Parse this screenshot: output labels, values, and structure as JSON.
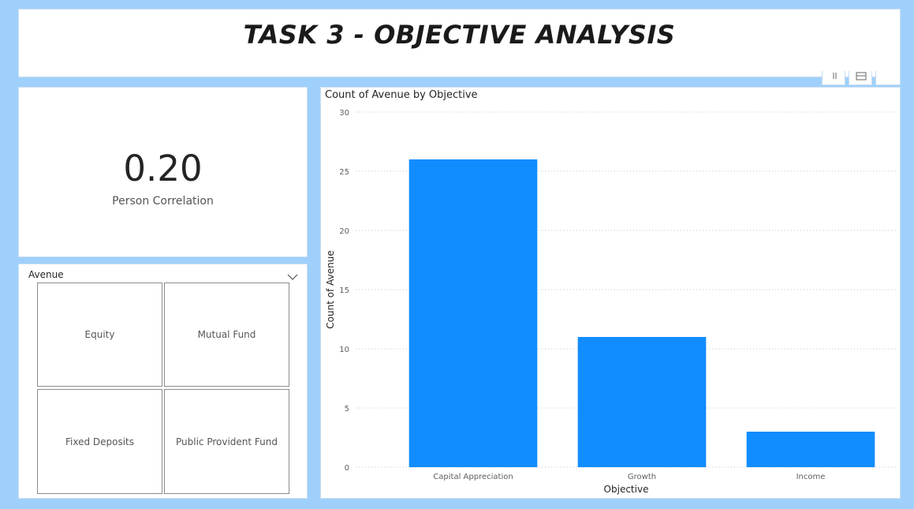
{
  "title": "TASK 3 - OBJECTIVE ANALYSIS",
  "card": {
    "value": "0.20",
    "label": "Person Correlation"
  },
  "slicer": {
    "header": "Avenue",
    "icon": "chevron-down-icon",
    "items": [
      "Equity",
      "Mutual Fund",
      "Fixed Deposits",
      "Public Provident Fund"
    ]
  },
  "chart_data": {
    "type": "bar",
    "title": "Count of Avenue by Objective",
    "categories": [
      "Capital Appreciation",
      "Growth",
      "Income"
    ],
    "values": [
      26,
      11,
      3
    ],
    "xlabel": "Objective",
    "ylabel": "Count of Avenue",
    "ylim": [
      0,
      30
    ],
    "yticks": [
      0,
      5,
      10,
      15,
      20,
      25,
      30
    ],
    "grid": true,
    "bar_color": "#118dff"
  },
  "colors": {
    "background": "#9fd0fb",
    "accent": "#118dff"
  }
}
